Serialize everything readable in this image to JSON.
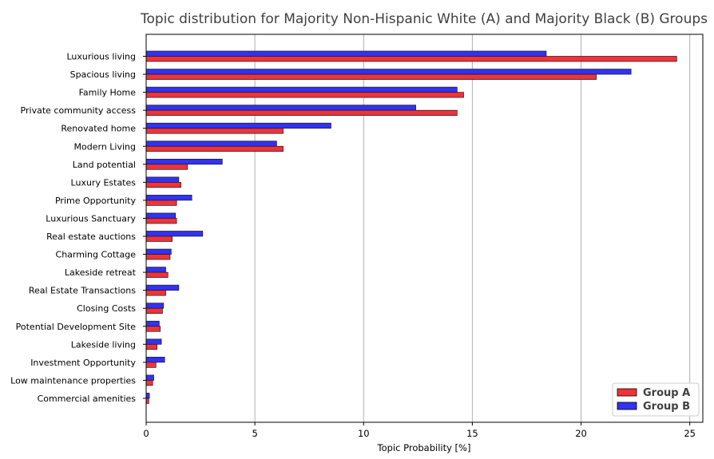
{
  "chart_data": {
    "type": "bar",
    "orientation": "horizontal",
    "title": "Topic distribution for Majority Non-Hispanic White (A) and Majority Black (B) Groups",
    "xlabel": "Topic Probability [%]",
    "ylabel": "",
    "xlim": [
      0,
      25.6
    ],
    "xticks": [
      0,
      5,
      10,
      15,
      20,
      25
    ],
    "grid": "x",
    "legend_position": "bottom-right",
    "categories": [
      "Luxurious living",
      "Spacious living",
      "Family Home",
      "Private community access",
      "Renovated home",
      "Modern Living",
      "Land potential",
      "Luxury Estates",
      "Prime Opportunity",
      "Luxurious Sanctuary",
      "Real estate auctions",
      "Charming Cottage",
      "Lakeside retreat",
      "Real Estate Transactions",
      "Closing Costs",
      "Potential Development Site",
      "Lakeside living",
      "Investment Opportunity",
      "Low maintenance properties",
      "Commercial amenities"
    ],
    "series": [
      {
        "name": "Group A",
        "color": "#f0323a",
        "values": [
          24.4,
          20.7,
          14.6,
          14.3,
          6.3,
          6.3,
          1.9,
          1.6,
          1.4,
          1.4,
          1.2,
          1.1,
          1.0,
          0.9,
          0.75,
          0.65,
          0.5,
          0.45,
          0.3,
          0.12
        ]
      },
      {
        "name": "Group B",
        "color": "#3232f0",
        "values": [
          18.4,
          22.3,
          14.3,
          12.4,
          8.5,
          6.0,
          3.5,
          1.5,
          2.1,
          1.35,
          2.6,
          1.15,
          0.9,
          1.5,
          0.8,
          0.6,
          0.7,
          0.85,
          0.35,
          0.15
        ]
      }
    ]
  }
}
